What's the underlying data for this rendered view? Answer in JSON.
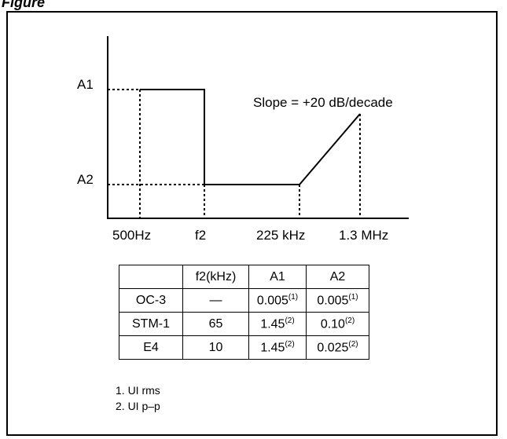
{
  "caption": "Figure",
  "diagram": {
    "y_labels": [
      "A1",
      "A2"
    ],
    "x_labels": [
      "500Hz",
      "f2",
      "225 kHz",
      "1.3 MHz"
    ],
    "slope_label": "Slope = +20 dB/decade"
  },
  "table": {
    "header": [
      "",
      "f2(kHz)",
      "A1",
      "A2"
    ],
    "rows": [
      {
        "name": "OC-3",
        "f2": "—",
        "a1": "0.005",
        "a1_note": "(1)",
        "a2": "0.005",
        "a2_note": "(1)"
      },
      {
        "name": "STM-1",
        "f2": "65",
        "a1": "1.45",
        "a1_note": "(2)",
        "a2": "0.10",
        "a2_note": "(2)"
      },
      {
        "name": "E4",
        "f2": "10",
        "a1": "1.45",
        "a1_note": "(2)",
        "a2": "0.025",
        "a2_note": "(2)"
      }
    ]
  },
  "notes": [
    "1. UI rms",
    "2. UI p–p"
  ]
}
